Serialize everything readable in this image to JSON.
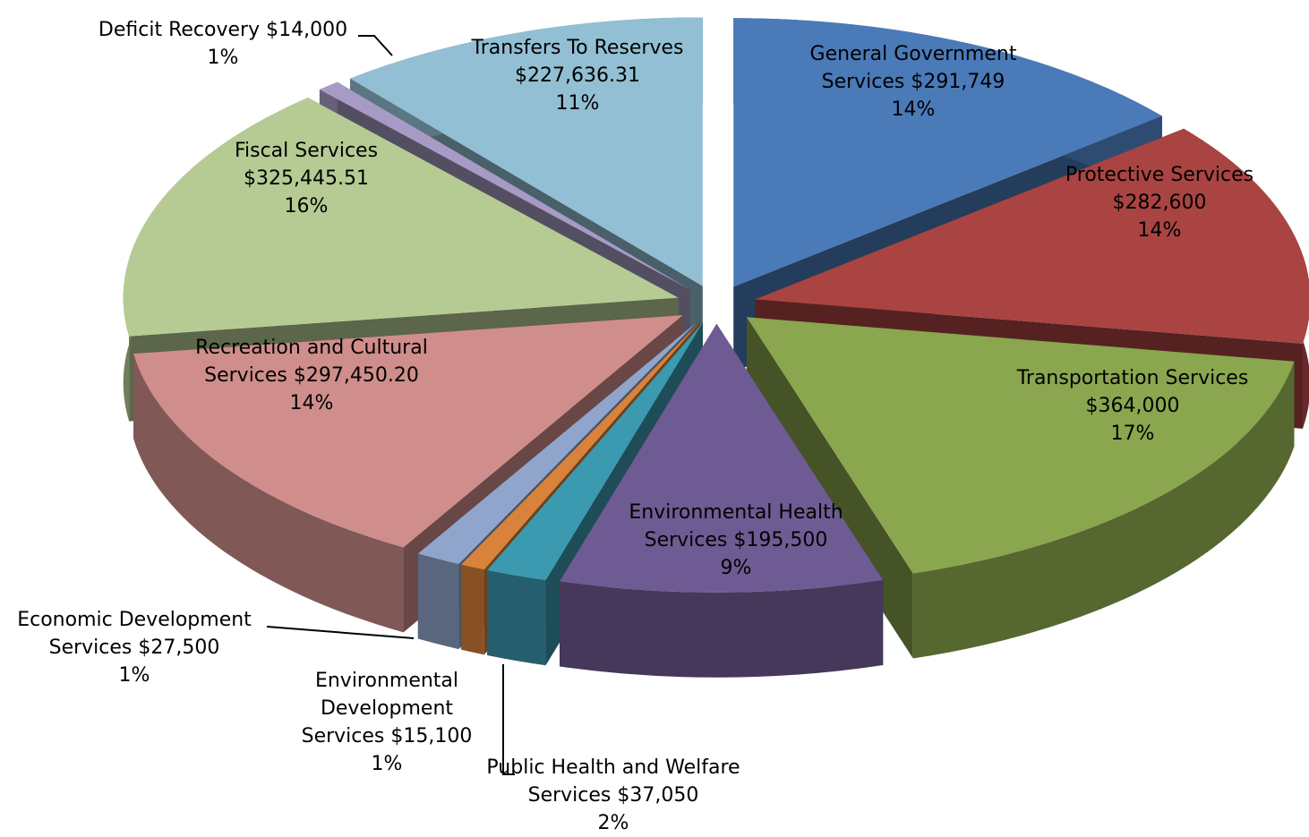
{
  "chart_data": {
    "type": "pie",
    "categories": [
      "General Government Services",
      "Protective Services",
      "Transportation Services",
      "Environmental Health Services",
      "Public Health and Welfare Services",
      "Environmental Development Services",
      "Economic Development Services",
      "Recreation and Cultural Services",
      "Fiscal Services",
      "Deficit Recovery",
      "Transfers To Reserves"
    ],
    "values": [
      291749,
      282600,
      364000,
      195500,
      37050,
      15100,
      27500,
      297450.2,
      325445.51,
      14000,
      227636.31
    ],
    "value_labels": [
      "$291,749",
      "$282,600",
      "$364,000",
      "$195,500",
      "$37,050",
      "$15,100",
      "$27,500",
      "$297,450.20",
      "$325,445.51",
      "$14,000",
      "$227,636.31"
    ],
    "percent_labels": [
      "14%",
      "14%",
      "17%",
      "9%",
      "2%",
      "1%",
      "1%",
      "14%",
      "16%",
      "1%",
      "11%"
    ],
    "colors": [
      "#4a7ab8",
      "#a94442",
      "#8aa64e",
      "#6f5b93",
      "#3b9ab0",
      "#d9823b",
      "#8fa5cc",
      "#cf8e8b",
      "#b5cb93",
      "#a79bc5",
      "#92bfd3"
    ]
  }
}
